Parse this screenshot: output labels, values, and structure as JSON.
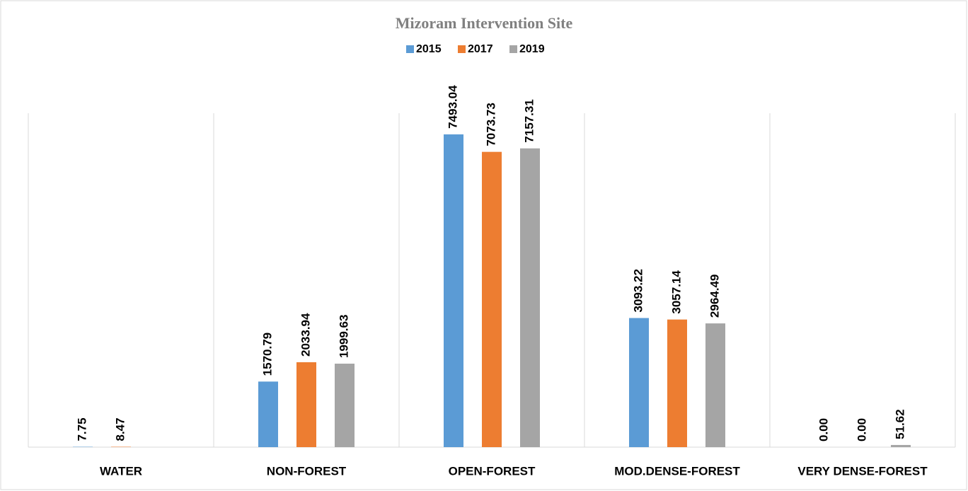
{
  "chart_data": {
    "type": "bar",
    "title": "Mizoram Intervention Site",
    "categories": [
      "WATER",
      "NON-FOREST",
      "OPEN-FOREST",
      "MOD.DENSE-FOREST",
      "VERY DENSE-FOREST"
    ],
    "series": [
      {
        "name": "2015",
        "color": "#5b9bd5",
        "values": [
          7.75,
          1570.79,
          7493.04,
          3093.22,
          0
        ],
        "value_labels": [
          "7.75",
          "1570.79",
          "7493.04",
          "3093.22",
          "0.00"
        ]
      },
      {
        "name": "2017",
        "color": "#ed7d31",
        "values": [
          8.47,
          2033.94,
          7073.73,
          3057.14,
          0
        ],
        "value_labels": [
          "8.47",
          "2033.94",
          "7073.73",
          "3057.14",
          "0.00"
        ]
      },
      {
        "name": "2019",
        "color": "#a5a5a5",
        "values": [
          null,
          1999.63,
          7157.31,
          2964.49,
          51.62
        ],
        "value_labels": [
          null,
          "1999.63",
          "7157.31",
          "2964.49",
          "51.62"
        ]
      }
    ],
    "ylim": [
      0,
      8000
    ]
  }
}
